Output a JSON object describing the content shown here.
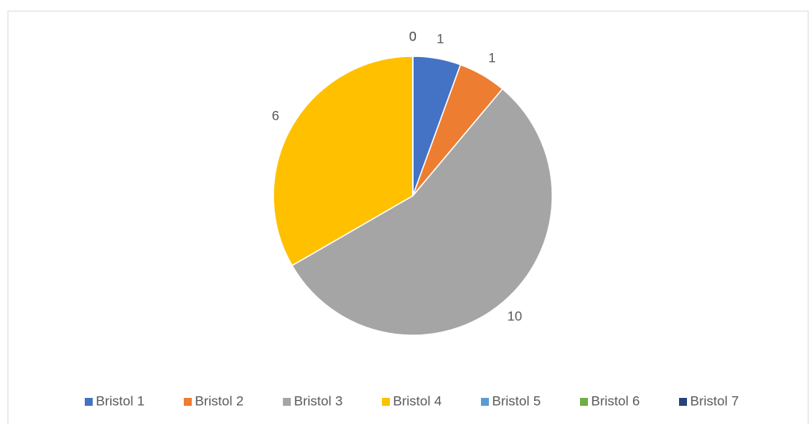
{
  "chart_data": {
    "type": "pie",
    "categories": [
      "Bristol 1",
      "Bristol 2",
      "Bristol 3",
      "Bristol 4",
      "Bristol 5",
      "Bristol 6",
      "Bristol 7"
    ],
    "values": [
      1,
      1,
      10,
      6,
      0,
      0,
      0
    ],
    "colors": [
      "#4472c4",
      "#ed7d31",
      "#a5a5a5",
      "#ffc000",
      "#5b9bd5",
      "#70ad47",
      "#264478"
    ],
    "legend": "bottom"
  }
}
